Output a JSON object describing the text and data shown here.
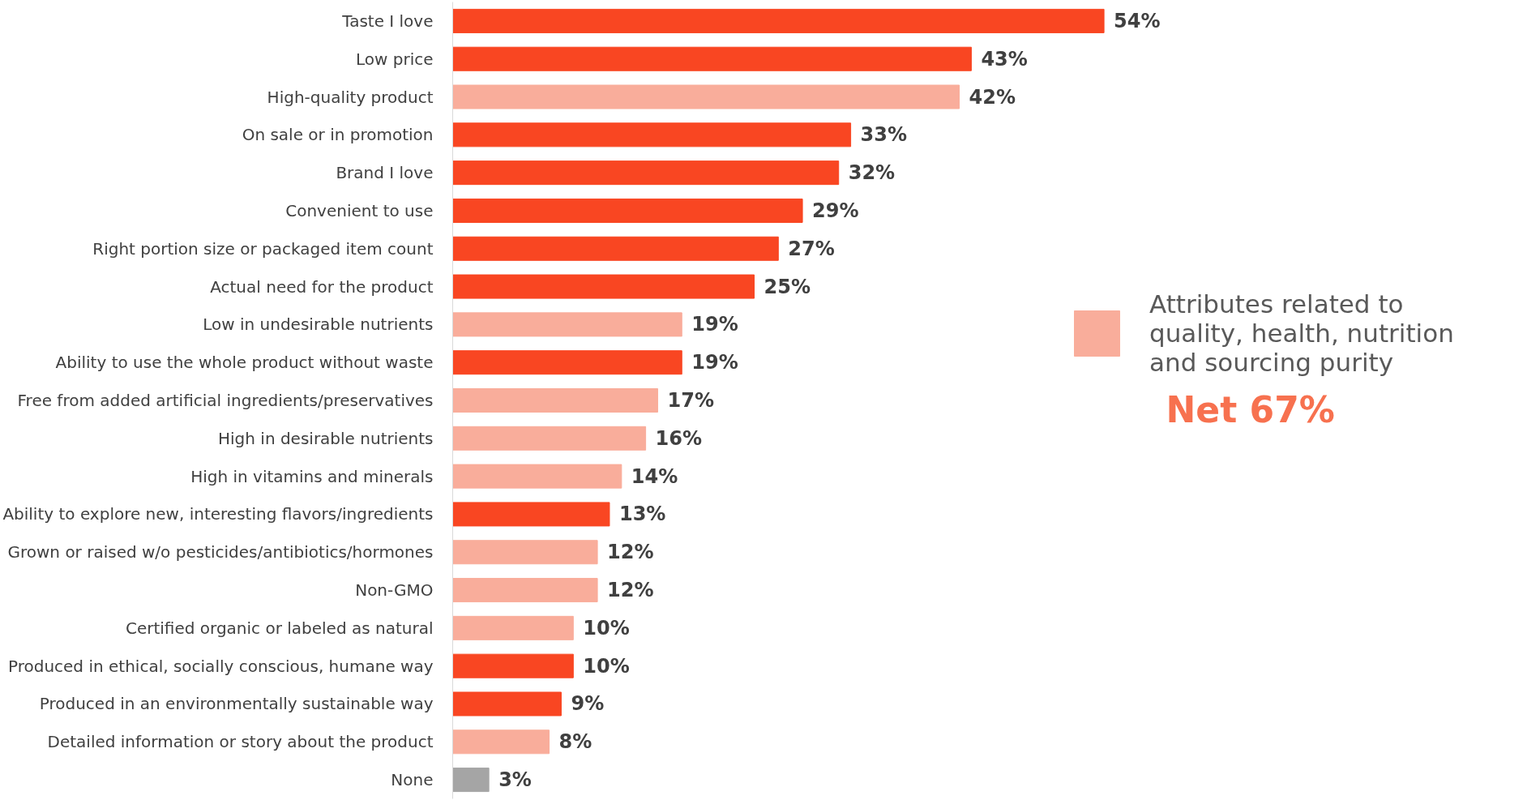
{
  "chart_data": {
    "type": "bar",
    "orientation": "horizontal",
    "legend": "right",
    "grid": false,
    "categories": [
      "Taste I love",
      "Low price",
      "High-quality product",
      "On sale or in promotion",
      "Brand I love",
      "Convenient to use",
      "Right portion size or packaged item count",
      "Actual need for the product",
      "Low in undesirable nutrients",
      "Ability to use the whole product without waste",
      "Free from added artificial ingredients/preservatives",
      "High in desirable nutrients",
      "High in vitamins and minerals",
      "Ability to explore new, interesting flavors/ingredients",
      "Grown or raised w/o pesticides/antibiotics/hormones",
      "Non-GMO",
      "Certified organic or labeled as natural",
      "Produced in ethical, socially conscious, humane way",
      "Produced in an environmentally sustainable way",
      "Detailed information or story about the product",
      "None"
    ],
    "series": [
      {
        "color": "#f94622",
        "values": [
          54,
          43,
          null,
          33,
          32,
          29,
          27,
          25,
          null,
          19,
          null,
          null,
          null,
          13,
          null,
          null,
          null,
          10,
          9,
          null,
          null
        ],
        "value_labels": [
          "54%",
          "43%",
          null,
          "33%",
          "32%",
          "29%",
          "27%",
          "25%",
          null,
          "19%",
          null,
          null,
          null,
          "13%",
          null,
          null,
          null,
          "10%",
          "9%",
          null,
          null
        ]
      },
      {
        "name": "Attributes related to quality, health, nutrition and sourcing purity",
        "color": "#f9ad9b",
        "values": [
          null,
          null,
          42,
          null,
          null,
          null,
          null,
          null,
          19,
          null,
          17,
          16,
          14,
          null,
          12,
          12,
          10,
          null,
          null,
          8,
          null
        ],
        "value_labels": [
          null,
          null,
          "42%",
          null,
          null,
          null,
          null,
          null,
          "19%",
          null,
          "17%",
          "16%",
          "14%",
          null,
          "12%",
          "12%",
          "10%",
          null,
          null,
          "8%",
          null
        ]
      },
      {
        "color": "#a5a5a5",
        "values": [
          null,
          null,
          null,
          null,
          null,
          null,
          null,
          null,
          null,
          null,
          null,
          null,
          null,
          null,
          null,
          null,
          null,
          null,
          null,
          null,
          3
        ],
        "value_labels": [
          null,
          null,
          null,
          null,
          null,
          null,
          null,
          null,
          null,
          null,
          null,
          null,
          null,
          null,
          null,
          null,
          null,
          null,
          null,
          null,
          "3%"
        ]
      }
    ],
    "annotations": [
      "Net 67%"
    ]
  }
}
